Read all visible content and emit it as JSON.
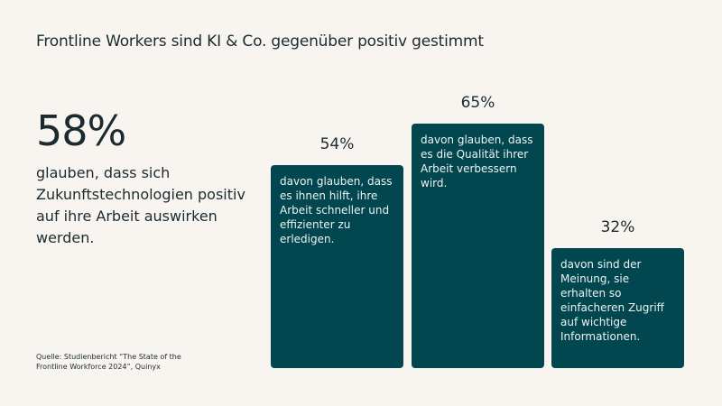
{
  "title": "Frontline Workers sind KI & Co. gegenüber positiv gestimmt",
  "headline": {
    "value": "58%",
    "text": "glauben, dass sich Zukunftstechnologien positiv auf ihre Arbeit auswirken werden."
  },
  "source": "Quelle: Studienbericht “The State of the Frontline Workforce 2024”, Quinyx",
  "colors": {
    "bar": "#02474f",
    "background": "#f8f5f0",
    "text": "#1b2a31"
  },
  "chart_data": {
    "type": "bar",
    "title": "Frontline Workers sind KI & Co. gegenüber positiv gestimmt",
    "categories": [
      "davon glauben, dass es ihnen hilft, ihre Arbeit schneller und effizienter zu erledigen.",
      "davon glauben, dass es die Qualität ihrer Arbeit verbessern wird.",
      "davon sind der Meinung, sie erhalten so einfacheren Zugriff auf wichtige Informationen."
    ],
    "values": [
      54,
      65,
      32
    ],
    "labels": [
      "54%",
      "65%",
      "32%"
    ],
    "ylim": [
      0,
      100
    ],
    "grid": false
  }
}
